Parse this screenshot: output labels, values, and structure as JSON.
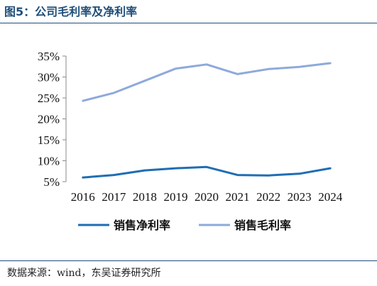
{
  "figure": {
    "title": "图5：公司毛利率及净利率",
    "source": "数据来源：wind，东吴证券研究所"
  },
  "chart_data": {
    "type": "line",
    "title": "",
    "xlabel": "",
    "ylabel": "",
    "categories": [
      "2016",
      "2017",
      "2018",
      "2019",
      "2020",
      "2021",
      "2022",
      "2023",
      "2024"
    ],
    "ylim": [
      0.05,
      0.35
    ],
    "yticks": [
      0.05,
      0.1,
      0.15,
      0.2,
      0.25,
      0.3,
      0.35
    ],
    "ytick_labels": [
      "5%",
      "10%",
      "15%",
      "20%",
      "25%",
      "30%",
      "35%"
    ],
    "grid": false,
    "legend_position": "bottom",
    "series": [
      {
        "name": "销售净利率",
        "color": "#1f6eb3",
        "values": [
          0.06,
          0.066,
          0.077,
          0.082,
          0.085,
          0.066,
          0.065,
          0.069,
          0.082
        ]
      },
      {
        "name": "销售毛利率",
        "color": "#8eaadb",
        "values": [
          0.243,
          0.262,
          0.291,
          0.32,
          0.33,
          0.307,
          0.319,
          0.324,
          0.333
        ]
      }
    ]
  }
}
